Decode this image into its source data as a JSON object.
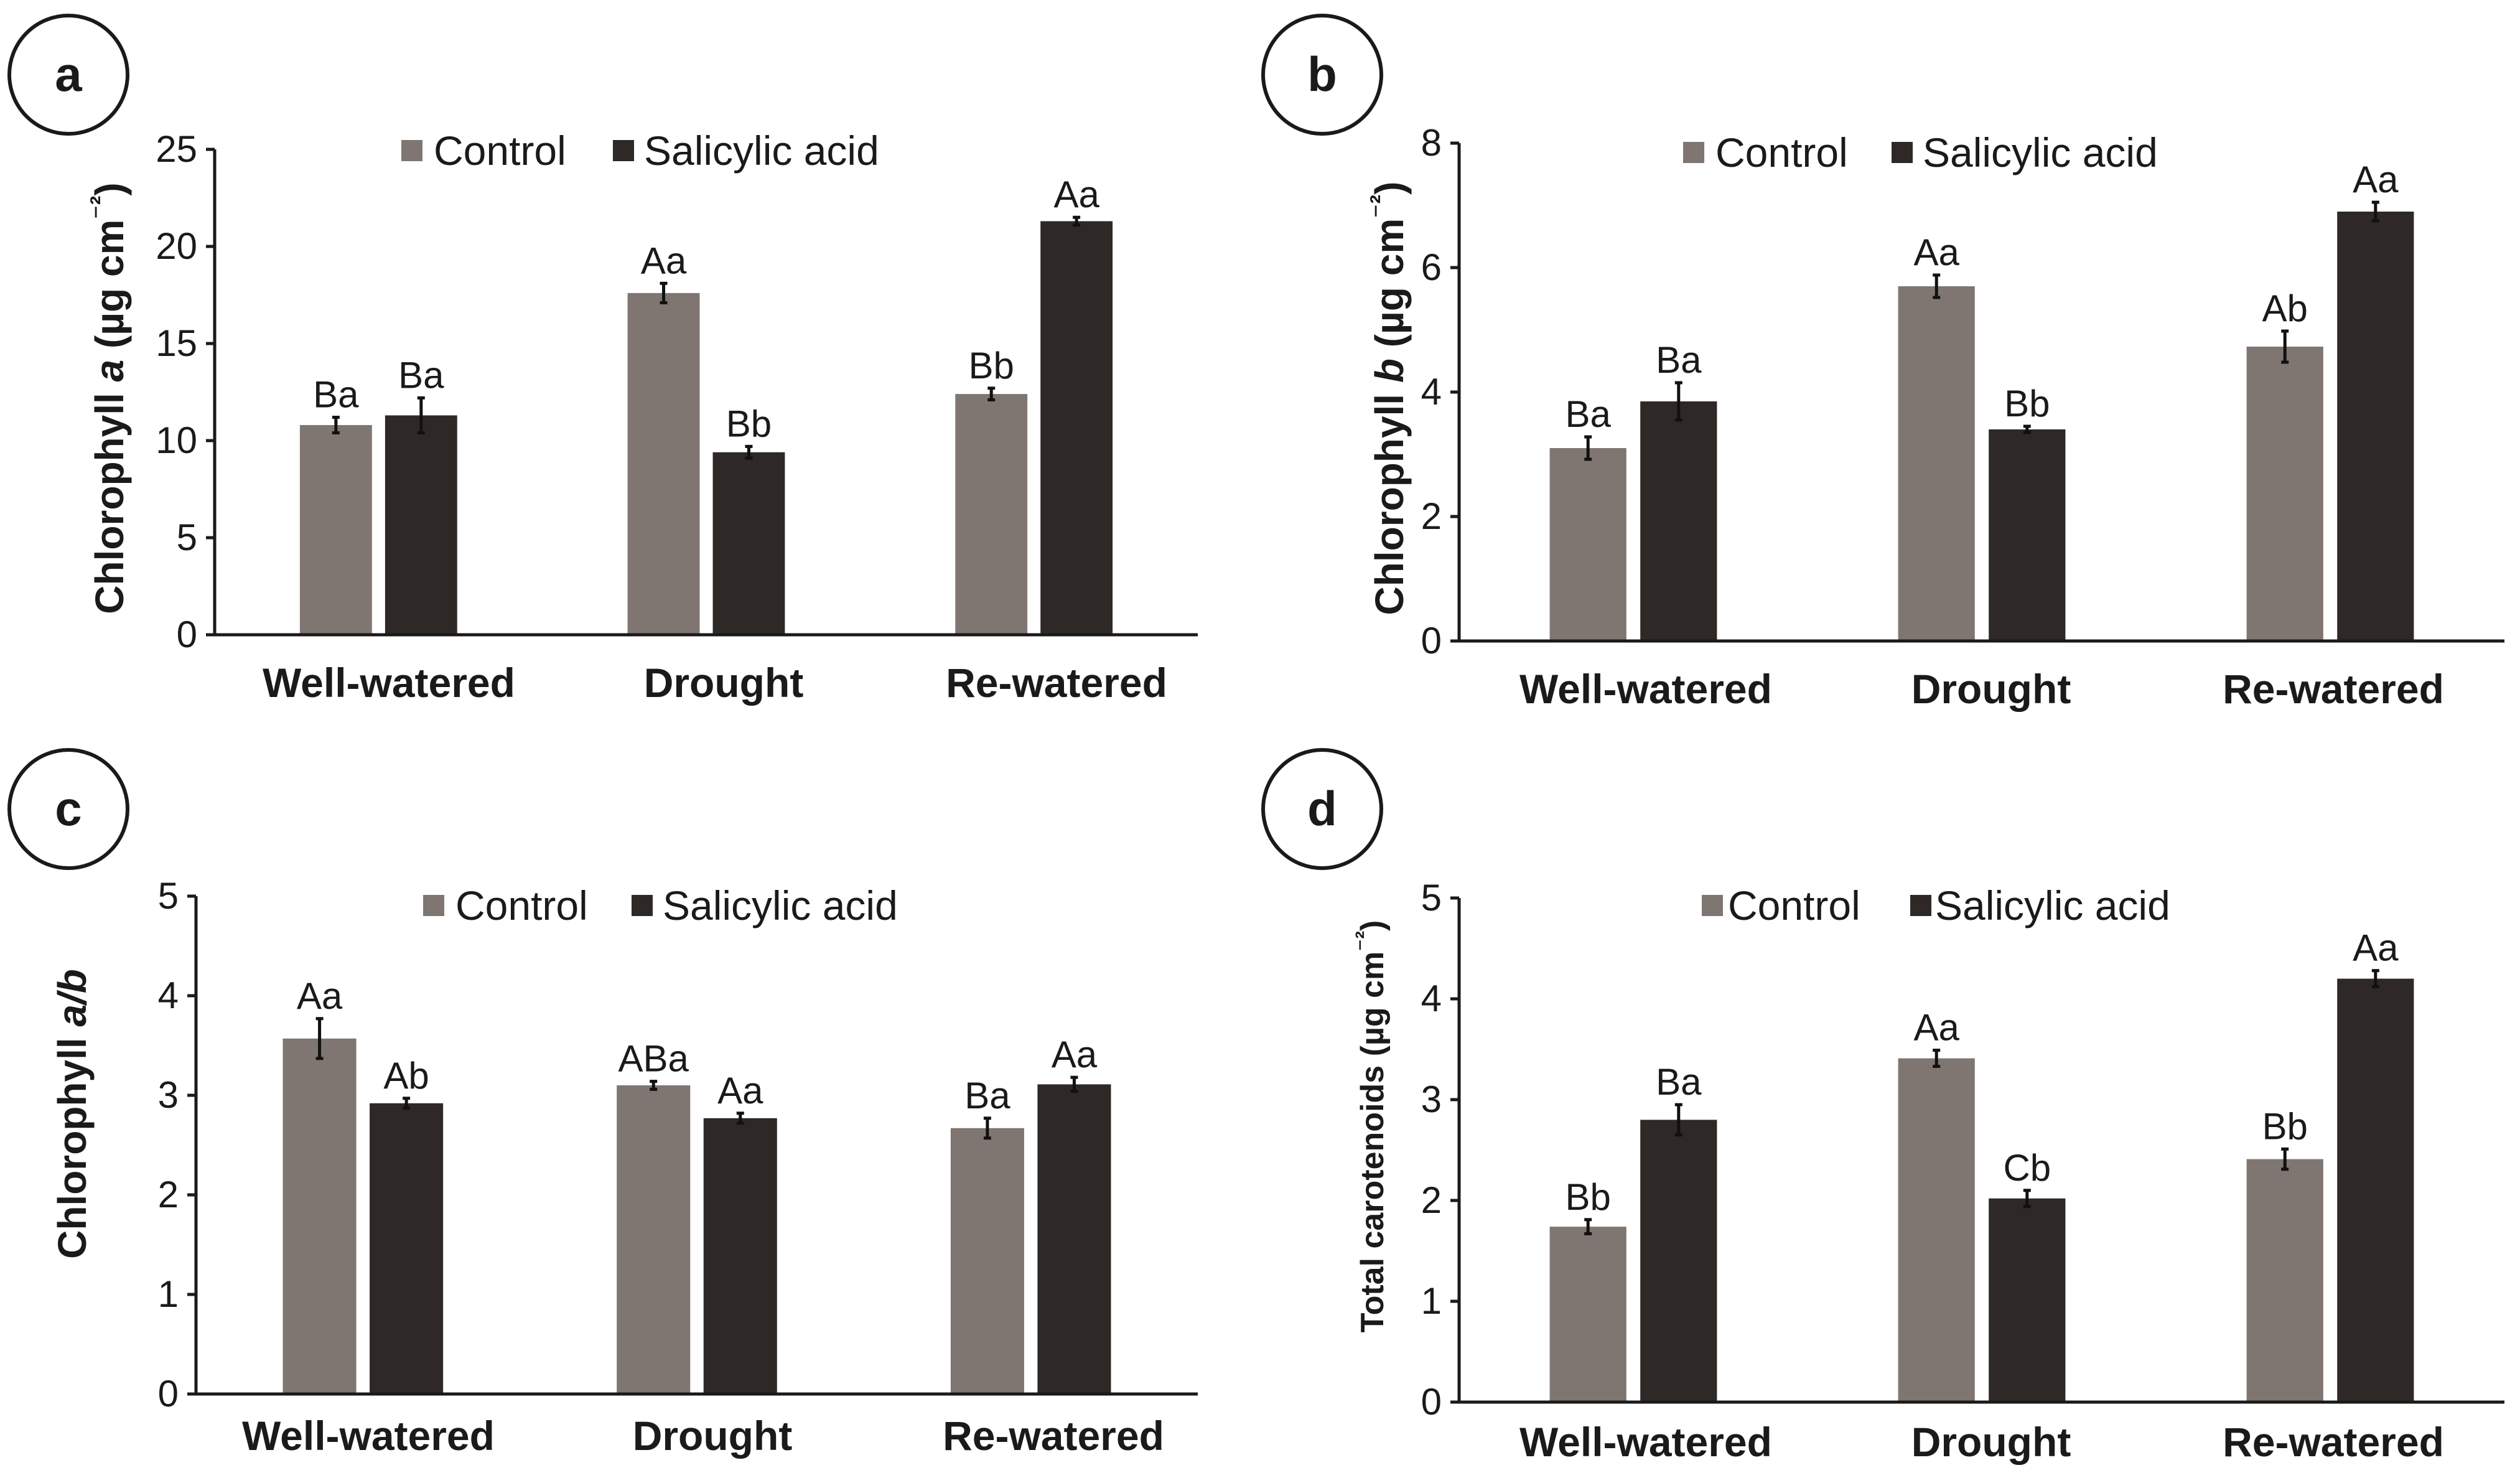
{
  "figure": {
    "colors": {
      "control": "#7f7672",
      "salicylic": "#2e2926",
      "axis": "#1a1a1a",
      "text": "#1a1a1a"
    }
  },
  "chart_data": [
    {
      "panel": "a",
      "type": "bar",
      "ylabel": "Chlorophyll a (µg cm⁻²)",
      "ylabel_parts": [
        "Chlorophyll ",
        "a",
        " (µg cm",
        "⁻²",
        ")"
      ],
      "ylim": [
        0,
        25
      ],
      "yticks": [
        0,
        5,
        10,
        15,
        20,
        25
      ],
      "categories": [
        "Well-watered",
        "Drought",
        "Re-watered"
      ],
      "legend": [
        "Control",
        "Salicylic acid"
      ],
      "series": [
        {
          "name": "Control",
          "values": [
            10.8,
            17.6,
            12.4
          ],
          "errors": [
            0.4,
            0.5,
            0.3
          ],
          "labels": [
            "Ba",
            "Aa",
            "Bb"
          ]
        },
        {
          "name": "Salicylic acid",
          "values": [
            11.3,
            9.4,
            21.3
          ],
          "errors": [
            0.9,
            0.3,
            0.2
          ],
          "labels": [
            "Ba",
            "Bb",
            "Aa"
          ]
        }
      ]
    },
    {
      "panel": "b",
      "type": "bar",
      "ylabel": "Chlorophyll b (µg cm⁻²)",
      "ylabel_parts": [
        "Chlorophyll ",
        "b",
        " (µg cm",
        "⁻²",
        ")"
      ],
      "ylim": [
        0,
        8
      ],
      "yticks": [
        0,
        2,
        4,
        6,
        8
      ],
      "categories": [
        "Well-watered",
        "Drought",
        "Re-watered"
      ],
      "legend": [
        "Control",
        "Salicylic acid"
      ],
      "series": [
        {
          "name": "Control",
          "values": [
            3.1,
            5.7,
            4.73
          ],
          "errors": [
            0.18,
            0.18,
            0.25
          ],
          "labels": [
            "Ba",
            "Aa",
            "Ab"
          ]
        },
        {
          "name": "Salicylic acid",
          "values": [
            3.85,
            3.4,
            6.9
          ],
          "errors": [
            0.3,
            0.05,
            0.15
          ],
          "labels": [
            "Ba",
            "Bb",
            "Aa"
          ]
        }
      ]
    },
    {
      "panel": "c",
      "type": "bar",
      "ylabel": "Chlorophyll a/b",
      "ylabel_parts": [
        "Chlorophyll ",
        "a/b",
        "",
        "",
        ""
      ],
      "ylim": [
        0,
        5
      ],
      "yticks": [
        0,
        1,
        2,
        3,
        4,
        5
      ],
      "categories": [
        "Well-watered",
        "Drought",
        "Re-watered"
      ],
      "legend": [
        "Control",
        "Salicylic acid"
      ],
      "series": [
        {
          "name": "Control",
          "values": [
            3.57,
            3.1,
            2.67
          ],
          "errors": [
            0.2,
            0.04,
            0.1
          ],
          "labels": [
            "Aa",
            "ABa",
            "Ba"
          ]
        },
        {
          "name": "Salicylic acid",
          "values": [
            2.92,
            2.77,
            3.11
          ],
          "errors": [
            0.05,
            0.05,
            0.07
          ],
          "labels": [
            "Ab",
            "Aa",
            "Aa"
          ]
        }
      ]
    },
    {
      "panel": "d",
      "type": "bar",
      "ylabel": "Total carotenoids (µg cm⁻²)",
      "ylabel_parts": [
        "Total carotenoids (µg cm",
        "",
        "",
        "⁻²",
        ")"
      ],
      "ylim": [
        0,
        5
      ],
      "yticks": [
        0,
        1,
        2,
        3,
        4,
        5
      ],
      "categories": [
        "Well-watered",
        "Drought",
        "Re-watered"
      ],
      "legend": [
        "Control",
        "Salicylic acid"
      ],
      "series": [
        {
          "name": "Control",
          "values": [
            1.74,
            3.41,
            2.41
          ],
          "errors": [
            0.07,
            0.08,
            0.1
          ],
          "labels": [
            "Bb",
            "Aa",
            "Bb"
          ]
        },
        {
          "name": "Salicylic acid",
          "values": [
            2.8,
            2.02,
            4.2
          ],
          "errors": [
            0.15,
            0.08,
            0.08
          ],
          "labels": [
            "Ba",
            "Cb",
            "Aa"
          ]
        }
      ]
    }
  ]
}
